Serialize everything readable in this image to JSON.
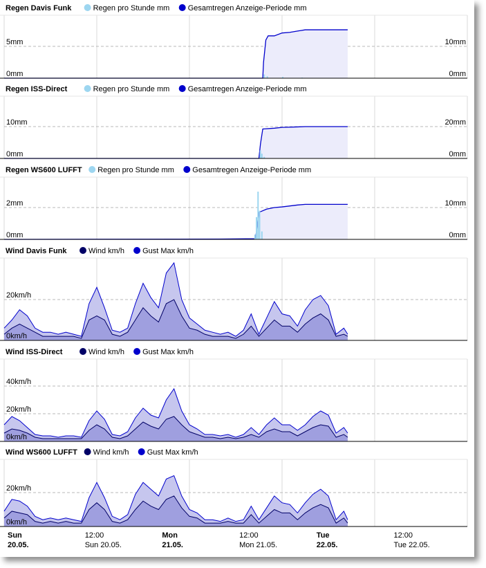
{
  "colors": {
    "rain_rate": "#9dd6f0",
    "rain_total": "#0000cc",
    "fill": "#ececfb",
    "wind": "#000066",
    "gust": "#0000cc",
    "gust_fill": "#c6c6ee",
    "wind_fill": "#8f8fd8"
  },
  "charts": [
    {
      "kind": "rain",
      "title": "Regen Davis Funk",
      "legend": [
        "Regen pro Stunde mm",
        "Gesamtregen Anzeige-Periode mm"
      ],
      "left_ticks": [
        {
          "v": 5,
          "label": "5mm"
        },
        {
          "v": 0,
          "label": "0mm"
        }
      ],
      "right_ticks": [
        {
          "v": 10,
          "label": "10mm"
        },
        {
          "v": 0,
          "label": "0mm"
        }
      ]
    },
    {
      "kind": "rain",
      "title": "Regen ISS-Direct",
      "legend": [
        "Regen pro Stunde mm",
        "Gesamtregen Anzeige-Periode mm"
      ],
      "left_ticks": [
        {
          "v": 10,
          "label": "10mm"
        },
        {
          "v": 0,
          "label": "0mm"
        }
      ],
      "right_ticks": [
        {
          "v": 20,
          "label": "20mm"
        },
        {
          "v": 0,
          "label": "0mm"
        }
      ]
    },
    {
      "kind": "rain",
      "title": "Regen WS600 LUFFT",
      "legend": [
        "Regen pro Stunde mm",
        "Gesamtregen Anzeige-Periode mm"
      ],
      "left_ticks": [
        {
          "v": 2,
          "label": "2mm"
        },
        {
          "v": 0,
          "label": "0mm"
        }
      ],
      "right_ticks": [
        {
          "v": 10,
          "label": "10mm"
        },
        {
          "v": 0,
          "label": "0mm"
        }
      ]
    },
    {
      "kind": "wind",
      "title": "Wind Davis Funk",
      "legend": [
        "Wind km/h",
        "Gust Max km/h"
      ],
      "left_ticks": [
        {
          "v": 20,
          "label": "20km/h"
        },
        {
          "v": 0,
          "label": "0km/h"
        }
      ]
    },
    {
      "kind": "wind",
      "title": "Wind ISS-Direct",
      "legend": [
        "Wind km/h",
        "Gust Max km/h"
      ],
      "left_ticks": [
        {
          "v": 40,
          "label": "40km/h"
        },
        {
          "v": 20,
          "label": "20km/h"
        },
        {
          "v": 0,
          "label": "0km/h"
        }
      ]
    },
    {
      "kind": "wind",
      "title": "Wind WS600 LUFFT",
      "legend": [
        "Wind km/h",
        "Gust Max km/h"
      ],
      "left_ticks": [
        {
          "v": 20,
          "label": "20km/h"
        },
        {
          "v": 0,
          "label": "0km/h"
        }
      ]
    }
  ],
  "x_axis": [
    {
      "line1": "Sun",
      "line2": "20.05.",
      "bold": true
    },
    {
      "line1": "12:00",
      "line2": "Sun 20.05.",
      "bold": false
    },
    {
      "line1": "Mon",
      "line2": "21.05.",
      "bold": true
    },
    {
      "line1": "12:00",
      "line2": "Mon 21.05.",
      "bold": false
    },
    {
      "line1": "Tue",
      "line2": "22.05.",
      "bold": true
    },
    {
      "line1": "12:00",
      "line2": "Tue 22.05.",
      "bold": false
    }
  ],
  "chart_data": [
    {
      "type": "line",
      "title": "Regen Davis Funk",
      "x_unit": "hours since Sun 20.05. 00:00",
      "series": [
        {
          "name": "Gesamtregen Anzeige-Periode mm",
          "x": [
            0,
            33.5,
            33.6,
            33.9,
            34.2,
            35,
            36,
            37,
            38,
            38.5,
            39,
            44.5
          ],
          "values": [
            0,
            0,
            5,
            12,
            13.3,
            13.3,
            14.2,
            14.4,
            14.8,
            15.0,
            15.2,
            15.2
          ]
        },
        {
          "name": "Regen pro Stunde mm",
          "x": [
            33.6,
            34.0,
            36.0,
            38.5
          ],
          "values": [
            0.6,
            0.3,
            0.2,
            0.1
          ]
        }
      ]
    },
    {
      "type": "line",
      "title": "Regen ISS-Direct",
      "x_unit": "hours since Sun 20.05. 00:00",
      "series": [
        {
          "name": "Gesamtregen Anzeige-Periode mm",
          "x": [
            0,
            33.0,
            33.2,
            33.5,
            35,
            36,
            38,
            39,
            44.5
          ],
          "values": [
            0,
            0,
            9,
            18.5,
            19,
            19.5,
            19.8,
            20,
            20
          ]
        },
        {
          "name": "Regen pro Stunde mm",
          "x": [
            33.1,
            33.3,
            33.6
          ],
          "values": [
            2.5,
            1.5,
            0.5
          ]
        }
      ]
    },
    {
      "type": "line",
      "title": "Regen WS600 LUFFT",
      "x_unit": "hours since Sun 20.05. 00:00",
      "series": [
        {
          "name": "Gesamtregen Anzeige-Periode mm",
          "x": [
            0,
            28,
            32.5,
            32.6,
            33.0,
            34,
            35,
            36,
            38,
            39,
            44.5
          ],
          "values": [
            0,
            0.1,
            0.2,
            1,
            8.5,
            9.5,
            10,
            10.2,
            10.8,
            11,
            11
          ]
        },
        {
          "name": "Regen pro Stunde mm",
          "x": [
            32.4,
            32.6,
            32.8,
            33.0,
            33.3
          ],
          "values": [
            0.3,
            1.4,
            3.0,
            1.8,
            0.5
          ]
        }
      ]
    },
    {
      "type": "area",
      "title": "Wind Davis Funk",
      "x_unit": "hours since Sun 20.05. 00:00",
      "x": [
        0,
        1,
        2,
        3,
        4,
        5,
        6,
        7,
        8,
        9,
        10,
        11,
        12,
        13,
        14,
        15,
        16,
        17,
        18,
        19,
        20,
        21,
        22,
        23,
        24,
        25,
        26,
        27,
        28,
        29,
        30,
        31,
        32,
        33,
        34,
        35,
        36,
        37,
        38,
        39,
        40,
        41,
        42,
        43,
        44,
        44.5
      ],
      "series": [
        {
          "name": "Gust Max km/h",
          "values": [
            6,
            10,
            15,
            12,
            6,
            4,
            4,
            3,
            4,
            3,
            2,
            18,
            26,
            16,
            5,
            4,
            6,
            18,
            28,
            21,
            16,
            33,
            38,
            20,
            11,
            8,
            5,
            4,
            3,
            4,
            2,
            5,
            13,
            3,
            11,
            19,
            13,
            12,
            7,
            15,
            20,
            22,
            17,
            3,
            6,
            3
          ]
        },
        {
          "name": "Wind km/h",
          "values": [
            3,
            6,
            8,
            6,
            4,
            2,
            2,
            2,
            2,
            2,
            1,
            10,
            12,
            10,
            3,
            2,
            4,
            10,
            16,
            12,
            9,
            18,
            20,
            12,
            6,
            5,
            3,
            2,
            2,
            2,
            1,
            3,
            7,
            2,
            6,
            10,
            7,
            7,
            4,
            8,
            11,
            13,
            10,
            2,
            3,
            2
          ]
        }
      ]
    },
    {
      "type": "area",
      "title": "Wind ISS-Direct",
      "x_unit": "hours since Sun 20.05. 00:00",
      "x": [
        0,
        1,
        2,
        3,
        4,
        5,
        6,
        7,
        8,
        9,
        10,
        11,
        12,
        13,
        14,
        15,
        16,
        17,
        18,
        19,
        20,
        21,
        22,
        23,
        24,
        25,
        26,
        27,
        28,
        29,
        30,
        31,
        32,
        33,
        34,
        35,
        36,
        37,
        38,
        39,
        40,
        41,
        42,
        43,
        44,
        44.5
      ],
      "series": [
        {
          "name": "Gust Max km/h",
          "values": [
            12,
            18,
            15,
            10,
            5,
            4,
            4,
            3,
            4,
            4,
            3,
            15,
            22,
            16,
            5,
            4,
            7,
            17,
            24,
            19,
            17,
            30,
            38,
            22,
            12,
            9,
            5,
            5,
            4,
            5,
            3,
            5,
            10,
            5,
            12,
            17,
            12,
            12,
            8,
            12,
            18,
            22,
            19,
            6,
            10,
            6
          ]
        },
        {
          "name": "Wind km/h",
          "values": [
            6,
            9,
            8,
            6,
            3,
            2,
            2,
            2,
            2,
            2,
            2,
            8,
            12,
            9,
            3,
            2,
            4,
            9,
            14,
            11,
            9,
            16,
            18,
            12,
            7,
            5,
            3,
            3,
            2,
            3,
            2,
            3,
            5,
            3,
            7,
            9,
            7,
            7,
            4,
            7,
            10,
            12,
            11,
            3,
            5,
            3
          ]
        }
      ]
    },
    {
      "type": "area",
      "title": "Wind WS600 LUFFT",
      "x_unit": "hours since Sun 20.05. 00:00",
      "x": [
        0,
        1,
        2,
        3,
        4,
        5,
        6,
        7,
        8,
        9,
        10,
        11,
        12,
        13,
        14,
        15,
        16,
        17,
        18,
        19,
        20,
        21,
        22,
        23,
        24,
        25,
        26,
        27,
        28,
        29,
        30,
        31,
        32,
        33,
        34,
        35,
        36,
        37,
        38,
        39,
        40,
        41,
        42,
        43,
        44,
        44.5
      ],
      "series": [
        {
          "name": "Gust Max km/h",
          "values": [
            9,
            16,
            15,
            12,
            6,
            4,
            5,
            4,
            5,
            4,
            3,
            17,
            26,
            17,
            6,
            4,
            7,
            19,
            26,
            22,
            18,
            28,
            30,
            18,
            10,
            8,
            4,
            4,
            3,
            5,
            3,
            4,
            12,
            4,
            11,
            18,
            14,
            13,
            8,
            14,
            19,
            22,
            18,
            4,
            9,
            4
          ]
        },
        {
          "name": "Wind km/h",
          "values": [
            5,
            9,
            8,
            7,
            3,
            2,
            3,
            2,
            3,
            2,
            2,
            10,
            14,
            10,
            3,
            2,
            4,
            10,
            15,
            12,
            10,
            16,
            18,
            11,
            6,
            5,
            2,
            2,
            2,
            3,
            2,
            2,
            7,
            2,
            6,
            10,
            8,
            8,
            4,
            8,
            11,
            13,
            11,
            2,
            5,
            2
          ]
        }
      ]
    }
  ]
}
